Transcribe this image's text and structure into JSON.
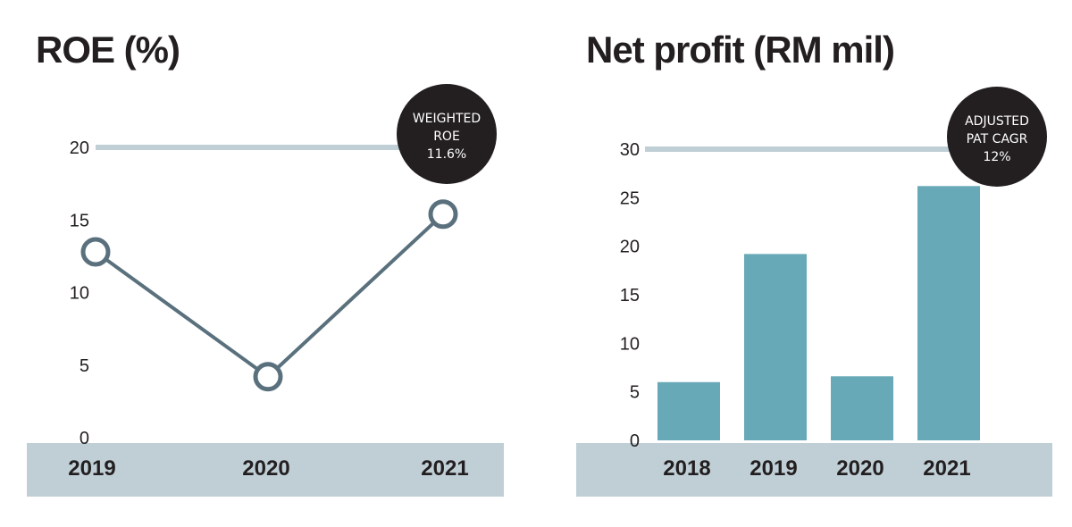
{
  "colors": {
    "line": "#5a717d",
    "bar": "#68a9b7",
    "band": "#c0cfd6",
    "ref_line": "#c0cfd6",
    "badge": "#231f20"
  },
  "chart_data": [
    {
      "type": "line",
      "title": "ROE (%)",
      "categories": [
        "2019",
        "2020",
        "2021"
      ],
      "values": [
        12.8,
        4.2,
        15.4
      ],
      "ylim": [
        0,
        20
      ],
      "yticks": [
        "0",
        "5",
        "10",
        "15",
        "20"
      ],
      "reference_line": 20,
      "badge": {
        "lines": [
          "WEIGHTED",
          "ROE",
          "11.6%"
        ]
      },
      "grid": false,
      "legend": "none"
    },
    {
      "type": "bar",
      "title": "Net profit (RM mil)",
      "categories": [
        "2018",
        "2019",
        "2020",
        "2021"
      ],
      "values": [
        6,
        19.2,
        6.6,
        26.2
      ],
      "ylim": [
        0,
        30
      ],
      "yticks": [
        "0",
        "5",
        "10",
        "15",
        "20",
        "25",
        "30"
      ],
      "reference_line": 30,
      "badge": {
        "lines": [
          "ADJUSTED",
          "PAT CAGR",
          "12%"
        ]
      },
      "grid": false,
      "legend": "none"
    }
  ]
}
